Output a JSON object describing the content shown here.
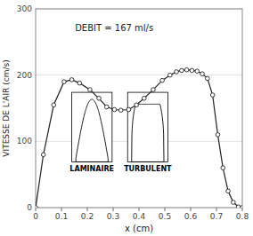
{
  "chart_data": {
    "type": "line",
    "annotations": [
      "DEBIT = 167 ml/s",
      "LAMINAIRE",
      "TURBULENT"
    ],
    "x_label": "x (cm)",
    "y_label": "VITESSE DE L'AIR (cm/s)",
    "x": [
      0.0,
      0.03,
      0.07,
      0.11,
      0.14,
      0.17,
      0.21,
      0.245,
      0.275,
      0.305,
      0.33,
      0.36,
      0.39,
      0.42,
      0.455,
      0.49,
      0.52,
      0.545,
      0.565,
      0.585,
      0.605,
      0.625,
      0.645,
      0.665,
      0.685,
      0.705,
      0.725,
      0.745,
      0.765,
      0.785,
      0.8
    ],
    "values": [
      0,
      80,
      155,
      190,
      193,
      188,
      178,
      165,
      152,
      148,
      147,
      148,
      155,
      165,
      178,
      192,
      200,
      205,
      207,
      208,
      207,
      206,
      202,
      195,
      170,
      110,
      60,
      25,
      8,
      1,
      0
    ],
    "color": "#222222",
    "marker": "circle",
    "xlim": [
      0,
      0.8
    ],
    "ylim": [
      0,
      300
    ],
    "xticks": [
      0,
      0.1,
      0.2,
      0.3,
      0.4,
      0.5,
      0.6,
      0.7,
      0.8
    ],
    "yticks": [
      0,
      100,
      200,
      300
    ]
  }
}
